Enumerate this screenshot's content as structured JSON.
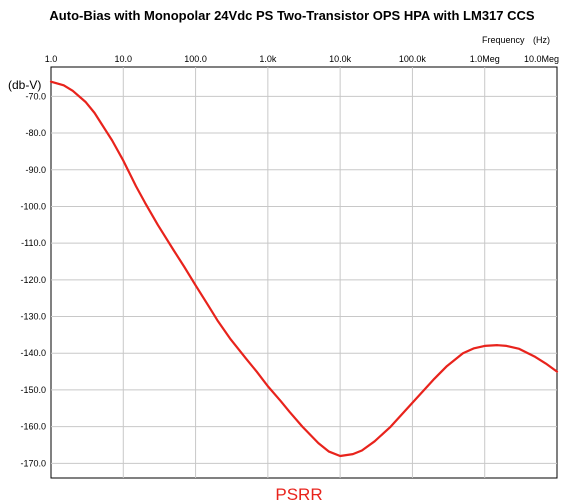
{
  "chart_data": {
    "type": "line",
    "title": "Auto-Bias with Monopolar 24Vdc PS Two-Transistor OPS HPA with LM317 CCS",
    "xlabel": "Frequency",
    "xunit": "(Hz)",
    "ylabel": "(db-V)",
    "caption": "PSRR",
    "x_scale": "log",
    "xlim": [
      1,
      10000000
    ],
    "ylim": [
      -174,
      -62
    ],
    "grid": true,
    "x_ticks": [
      {
        "value": 1,
        "label": "1.0"
      },
      {
        "value": 10,
        "label": "10.0"
      },
      {
        "value": 100,
        "label": "100.0"
      },
      {
        "value": 1000,
        "label": "1.0k"
      },
      {
        "value": 10000,
        "label": "10.0k"
      },
      {
        "value": 100000,
        "label": "100.0k"
      },
      {
        "value": 1000000,
        "label": "1.0Meg"
      },
      {
        "value": 10000000,
        "label": "10.0Meg"
      }
    ],
    "y_ticks": [
      {
        "value": -70,
        "label": "-70.0"
      },
      {
        "value": -80,
        "label": "-80.0"
      },
      {
        "value": -90,
        "label": "-90.0"
      },
      {
        "value": -100,
        "label": "-100.0"
      },
      {
        "value": -110,
        "label": "-110.0"
      },
      {
        "value": -120,
        "label": "-120.0"
      },
      {
        "value": -130,
        "label": "-130.0"
      },
      {
        "value": -140,
        "label": "-140.0"
      },
      {
        "value": -150,
        "label": "-150.0"
      },
      {
        "value": -160,
        "label": "-160.0"
      },
      {
        "value": -170,
        "label": "-170.0"
      }
    ],
    "series": [
      {
        "color": "#e8231c",
        "points": [
          [
            1,
            -66
          ],
          [
            1.5,
            -67
          ],
          [
            2,
            -68.5
          ],
          [
            3,
            -71.5
          ],
          [
            4,
            -74.5
          ],
          [
            5,
            -77.5
          ],
          [
            7,
            -82
          ],
          [
            10,
            -87.5
          ],
          [
            15,
            -94.5
          ],
          [
            20,
            -99
          ],
          [
            30,
            -105
          ],
          [
            50,
            -112
          ],
          [
            70,
            -116.5
          ],
          [
            100,
            -121.5
          ],
          [
            150,
            -127
          ],
          [
            200,
            -131
          ],
          [
            300,
            -136
          ],
          [
            500,
            -141.5
          ],
          [
            700,
            -145
          ],
          [
            1000,
            -149
          ],
          [
            1500,
            -153
          ],
          [
            2000,
            -156
          ],
          [
            3000,
            -160
          ],
          [
            5000,
            -164.5
          ],
          [
            7000,
            -166.8
          ],
          [
            10000,
            -168
          ],
          [
            15000,
            -167.5
          ],
          [
            20000,
            -166.5
          ],
          [
            30000,
            -164
          ],
          [
            50000,
            -160
          ],
          [
            100000,
            -153.5
          ],
          [
            200000,
            -147
          ],
          [
            300000,
            -143.5
          ],
          [
            500000,
            -140
          ],
          [
            700000,
            -138.7
          ],
          [
            1000000,
            -138
          ],
          [
            1500000,
            -137.8
          ],
          [
            2000000,
            -138
          ],
          [
            3000000,
            -138.8
          ],
          [
            5000000,
            -141
          ],
          [
            7000000,
            -142.8
          ],
          [
            10000000,
            -145
          ]
        ]
      }
    ]
  }
}
